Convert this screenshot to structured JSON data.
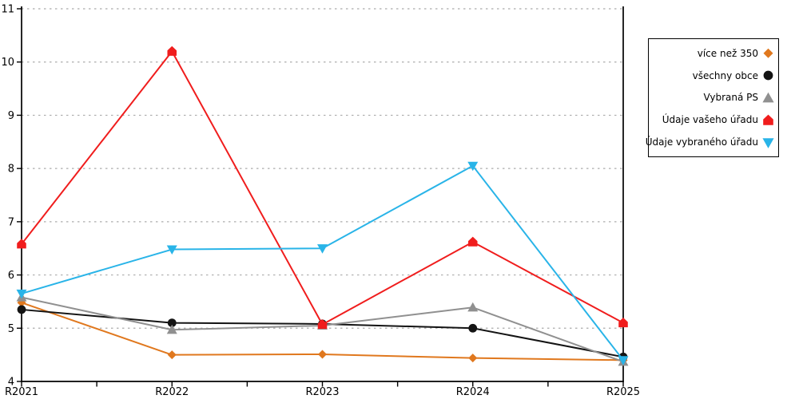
{
  "chart_data": {
    "type": "line",
    "title": "",
    "xlabel": "",
    "ylabel": "",
    "categories": [
      "R2021",
      "R2022",
      "R2023",
      "R2024",
      "R2025"
    ],
    "yticks": [
      4,
      5,
      6,
      7,
      8,
      9,
      10,
      11
    ],
    "ylim": [
      4,
      11
    ],
    "grid": {
      "horizontal": true,
      "style": "dotted",
      "color": "#ABABAB"
    },
    "axis_color": "#000000",
    "background_color": "#FFFFFF",
    "legend_position": "right",
    "series": [
      {
        "name": "více než 350",
        "color": "#E0781E",
        "marker": "diamond",
        "values": [
          5.48,
          4.5,
          4.51,
          4.44,
          4.4
        ]
      },
      {
        "name": "všechny obce",
        "color": "#141414",
        "marker": "circle",
        "values": [
          5.35,
          5.1,
          5.08,
          5.0,
          4.46
        ]
      },
      {
        "name": "Vybraná PS",
        "color": "#909090",
        "marker": "triangle-up",
        "values": [
          5.58,
          4.97,
          5.05,
          5.39,
          4.37
        ]
      },
      {
        "name": "Údaje vašeho úřadu",
        "color": "#F01D1D",
        "marker": "pentagon",
        "values": [
          6.58,
          10.2,
          5.07,
          6.62,
          5.1
        ]
      },
      {
        "name": "Údaje vybraného úřadu",
        "color": "#29B4E8",
        "marker": "triangle-down",
        "values": [
          5.65,
          6.48,
          6.5,
          8.05,
          4.4
        ]
      }
    ]
  }
}
